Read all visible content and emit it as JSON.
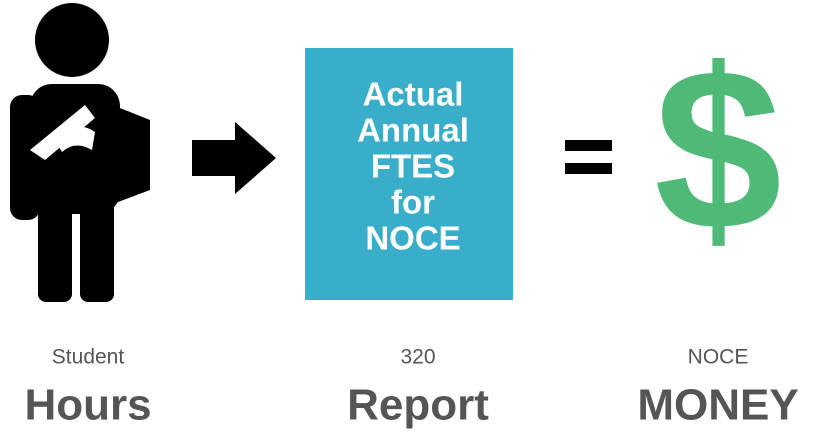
{
  "box": {
    "lines": [
      "Actual",
      "Annual",
      "FTES",
      "for",
      "NOCE"
    ]
  },
  "symbol": "$",
  "captions": [
    {
      "small": "Student",
      "big": "Hours"
    },
    {
      "small": "320",
      "big": "Report"
    },
    {
      "small": "NOCE",
      "big": "MONEY"
    }
  ]
}
